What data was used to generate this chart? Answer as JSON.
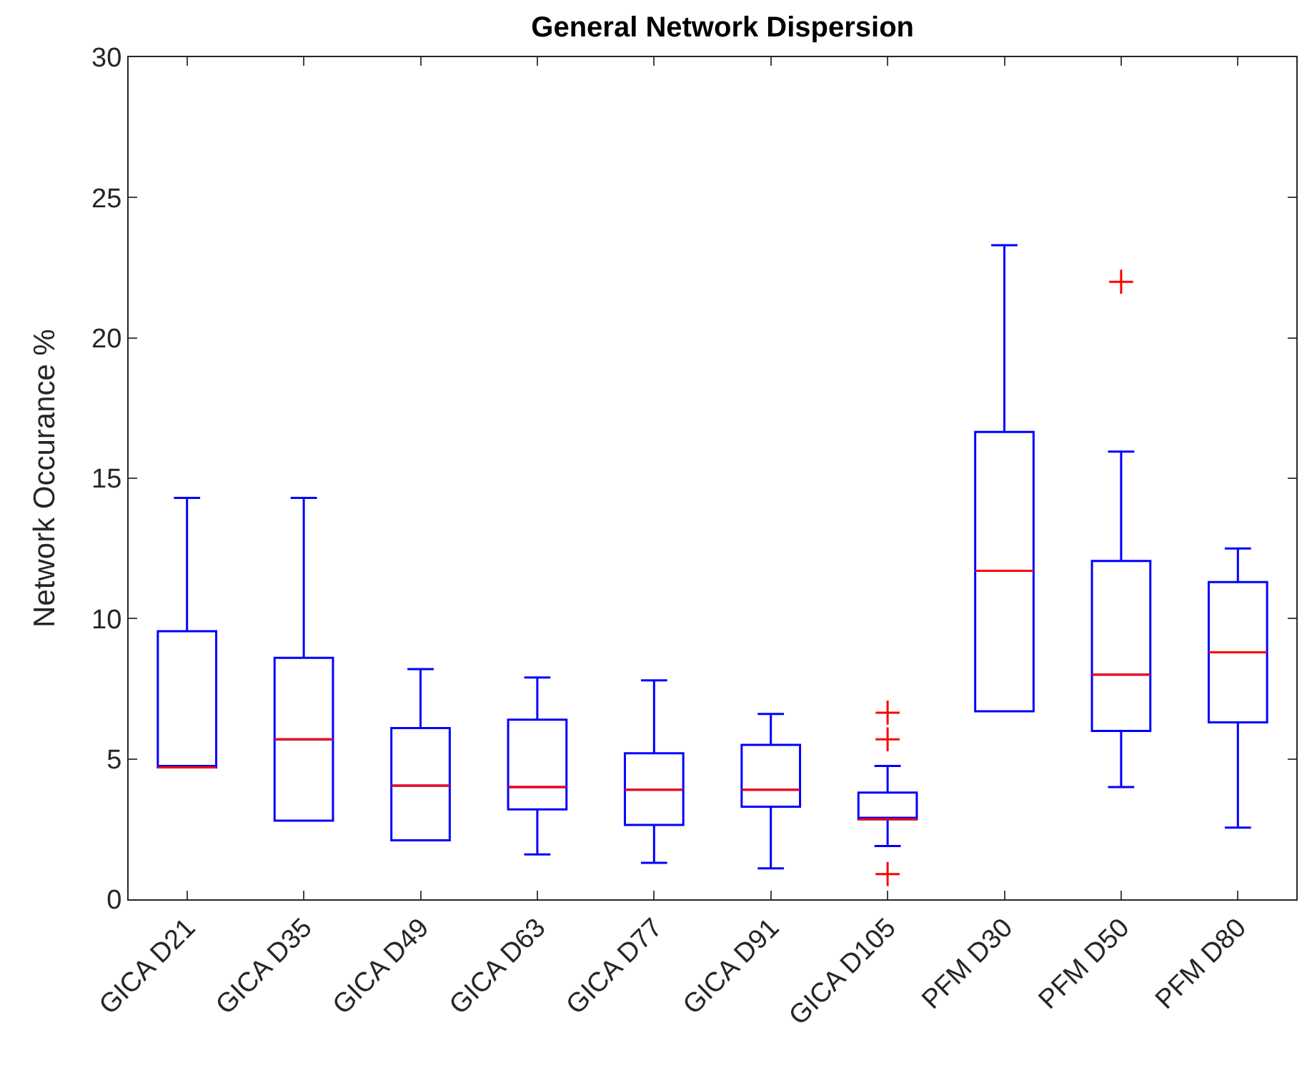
{
  "chart_data": {
    "type": "box",
    "title": "General Network Dispersion",
    "ylabel": "Network Occurance %",
    "categories": [
      "GICA D21",
      "GICA D35",
      "GICA D49",
      "GICA D63",
      "GICA D77",
      "GICA D91",
      "GICA D105",
      "PFM D30",
      "PFM D50",
      "PFM D80"
    ],
    "ylim": [
      0,
      30
    ],
    "yticks": [
      0,
      5,
      10,
      15,
      20,
      25,
      30
    ],
    "grid": false,
    "marker": "cross",
    "series": [
      {
        "color": "#0000ff",
        "boxes": [
          {
            "low": 4.7,
            "q1": 4.7,
            "median": 4.7,
            "q3": 9.55,
            "high": 14.3
          },
          {
            "low": 2.8,
            "q1": 2.8,
            "median": 5.7,
            "q3": 8.6,
            "high": 14.3
          },
          {
            "low": 2.1,
            "q1": 2.1,
            "median": 4.05,
            "q3": 6.1,
            "high": 8.2
          },
          {
            "low": 1.6,
            "q1": 3.2,
            "median": 4.0,
            "q3": 6.4,
            "high": 7.9
          },
          {
            "low": 1.3,
            "q1": 2.65,
            "median": 3.9,
            "q3": 5.2,
            "high": 7.8
          },
          {
            "low": 1.1,
            "q1": 3.3,
            "median": 3.9,
            "q3": 5.5,
            "high": 6.6
          },
          {
            "low": 1.9,
            "q1": 2.85,
            "median": 2.85,
            "q3": 3.8,
            "high": 4.75,
            "outliers": [
              6.65,
              5.7,
              0.9
            ]
          },
          {
            "low": 6.7,
            "q1": 6.7,
            "median": 11.7,
            "q3": 16.65,
            "high": 23.3
          },
          {
            "low": 4.0,
            "q1": 6.0,
            "median": 8.0,
            "q3": 12.05,
            "high": 15.95,
            "outliers": [
              22.0
            ]
          },
          {
            "low": 2.55,
            "q1": 6.3,
            "median": 8.8,
            "q3": 11.3,
            "high": 12.5
          }
        ]
      }
    ]
  }
}
